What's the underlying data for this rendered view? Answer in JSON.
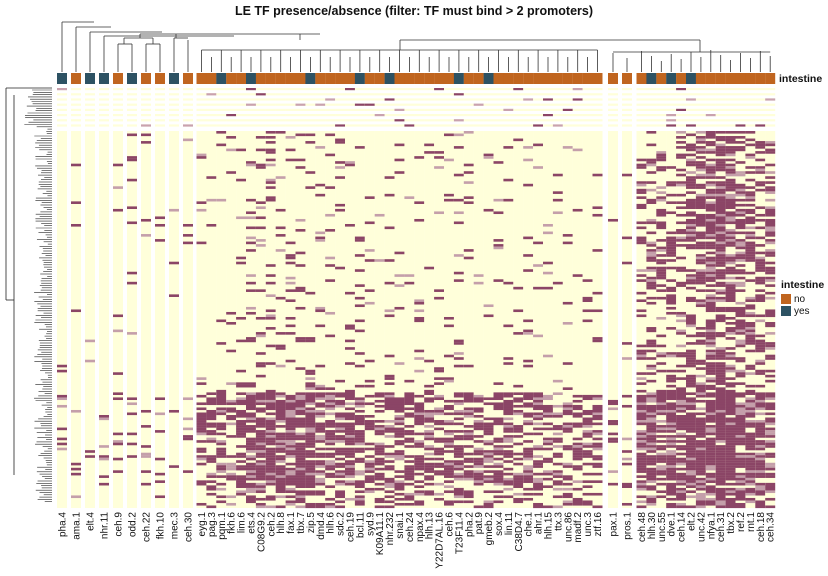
{
  "chart_data": {
    "type": "heatmap",
    "title": "LE TF presence/absence (filter: TF must bind > 2 promoters)",
    "columns": [
      "pha.4",
      "ama.1",
      "elt.4",
      "nhr.11",
      "ceh.9",
      "odd.2",
      "ceh.22",
      "fkh.10",
      "mec.3",
      "ceh.30",
      "eyg.1",
      "pag.3",
      "pqm.1",
      "fkh.6",
      "lim.6",
      "ets.4",
      "C08G9.2",
      "ceh.2",
      "hlh.8",
      "fax.1",
      "tbx.7",
      "zip.5",
      "dmd.4",
      "hlh.6",
      "sdc.2",
      "ceh.19",
      "bcl.11",
      "syd.9",
      "K09A11.1",
      "nhr.232",
      "snai.1",
      "ceh.24",
      "npax.4",
      "hlh.13",
      "Y22D7AL.16",
      "ceh.6",
      "T23F11.4",
      "pha.2",
      "pat.9",
      "gmeb.2",
      "sox.4",
      "lin.11",
      "C38D4.7",
      "che.1",
      "ahr.1",
      "hlh.15",
      "ttx.3",
      "unc.86",
      "madf.2",
      "unc.3",
      "ztf.16",
      "pax.1",
      "pros.1",
      "ceh.48",
      "hlh.30",
      "unc.55",
      "dve.1",
      "ceh.14",
      "elt.2",
      "unc.42",
      "nfya.1",
      "ceh.31",
      "tbx.2",
      "ref.2",
      "rnt.1",
      "ceh.18",
      "ceh.34"
    ],
    "column_groups": [
      1,
      1,
      1,
      1,
      1,
      1,
      1,
      1,
      1,
      1,
      41,
      1,
      1,
      14
    ],
    "intestine": [
      "yes",
      "no",
      "yes",
      "yes",
      "no",
      "yes",
      "no",
      "no",
      "yes",
      "no",
      "no",
      "no",
      "yes",
      "no",
      "no",
      "yes",
      "no",
      "no",
      "no",
      "no",
      "no",
      "yes",
      "no",
      "no",
      "no",
      "no",
      "yes",
      "no",
      "no",
      "yes",
      "no",
      "no",
      "no",
      "no",
      "no",
      "no",
      "yes",
      "no",
      "no",
      "yes",
      "no",
      "no",
      "no",
      "no",
      "no",
      "no",
      "no",
      "no",
      "no",
      "no",
      "no",
      "no",
      "no",
      "no",
      "yes",
      "no",
      "yes",
      "no",
      "yes",
      "no",
      "no",
      "no",
      "no",
      "no",
      "no",
      "no",
      "no"
    ],
    "presence_fraction_upper_rows": [
      0.03,
      0.03,
      0.02,
      0.02,
      0.03,
      0.03,
      0.03,
      0.02,
      0.03,
      0.05,
      0.05,
      0.05,
      0.05,
      0.08,
      0.08,
      0.12,
      0.15,
      0.15,
      0.12,
      0.12,
      0.12,
      0.12,
      0.1,
      0.1,
      0.1,
      0.1,
      0.1,
      0.1,
      0.08,
      0.08,
      0.08,
      0.08,
      0.08,
      0.08,
      0.08,
      0.08,
      0.08,
      0.06,
      0.06,
      0.06,
      0.06,
      0.06,
      0.06,
      0.06,
      0.06,
      0.06,
      0.06,
      0.06,
      0.06,
      0.06,
      0.06,
      0.02,
      0.02,
      0.25,
      0.3,
      0.3,
      0.3,
      0.35,
      0.45,
      0.6,
      0.7,
      0.7,
      0.55,
      0.5,
      0.45,
      0.4,
      0.35
    ],
    "presence_fraction_lower_rows": [
      0.15,
      0.12,
      0.1,
      0.1,
      0.15,
      0.12,
      0.15,
      0.15,
      0.1,
      0.2,
      0.5,
      0.5,
      0.55,
      0.6,
      0.65,
      0.8,
      0.9,
      0.9,
      0.88,
      0.88,
      0.88,
      0.85,
      0.7,
      0.7,
      0.7,
      0.7,
      0.65,
      0.65,
      0.65,
      0.65,
      0.65,
      0.6,
      0.6,
      0.6,
      0.6,
      0.6,
      0.6,
      0.6,
      0.6,
      0.6,
      0.6,
      0.6,
      0.6,
      0.6,
      0.6,
      0.55,
      0.55,
      0.55,
      0.55,
      0.55,
      0.55,
      0.25,
      0.2,
      0.8,
      0.8,
      0.8,
      0.8,
      0.85,
      0.85,
      0.9,
      0.9,
      0.9,
      0.85,
      0.85,
      0.85,
      0.85,
      0.8
    ],
    "value_colors": {
      "present": "#8B4566",
      "absent": "#FFFFDA"
    },
    "annotation": {
      "name": "intestine",
      "legend_title": "intestine",
      "levels": [
        {
          "label": "no",
          "color": "#C0651F"
        },
        {
          "label": "yes",
          "color": "#2D5263"
        }
      ]
    },
    "legend_placement": "right"
  }
}
